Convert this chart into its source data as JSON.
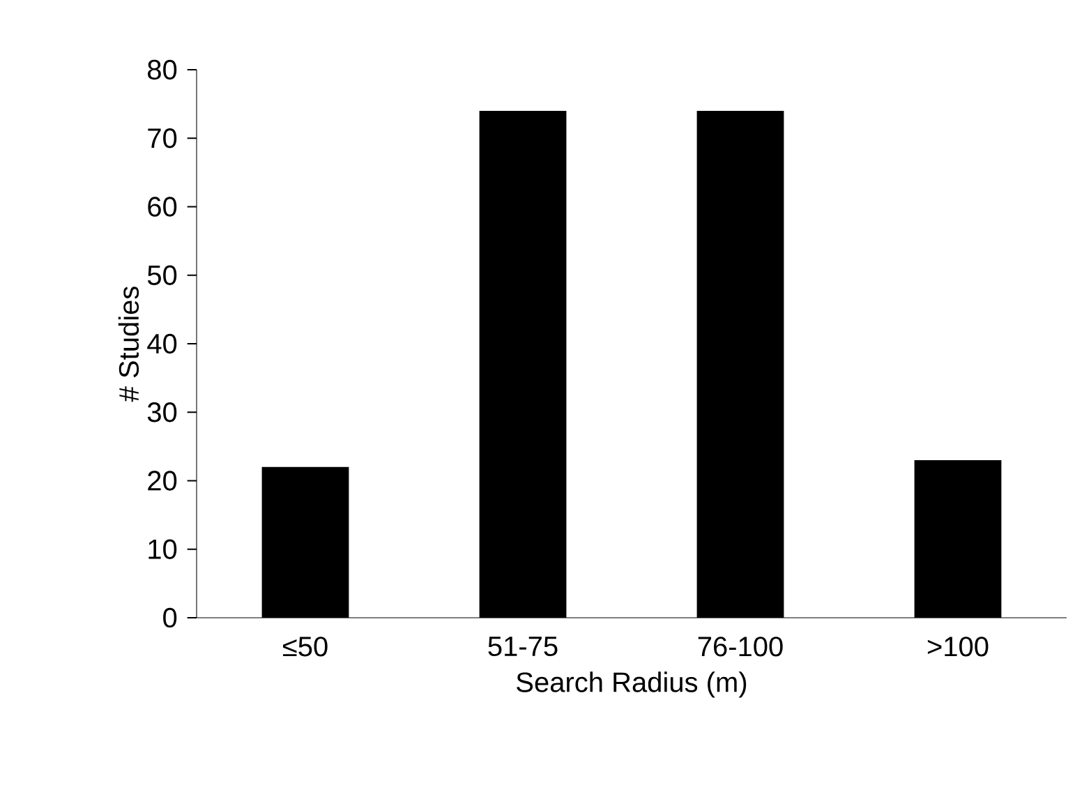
{
  "chart_data": {
    "type": "bar",
    "xlabel": "Search Radius (m)",
    "ylabel": "# Studies",
    "categories": [
      "≤50",
      "51-75",
      "76-100",
      ">100"
    ],
    "values": [
      22,
      74,
      74,
      23
    ],
    "color": "#000000",
    "ylim": [
      0,
      80
    ],
    "yticks": [
      0,
      10,
      20,
      30,
      40,
      50,
      60,
      70,
      80
    ],
    "grid": false
  }
}
